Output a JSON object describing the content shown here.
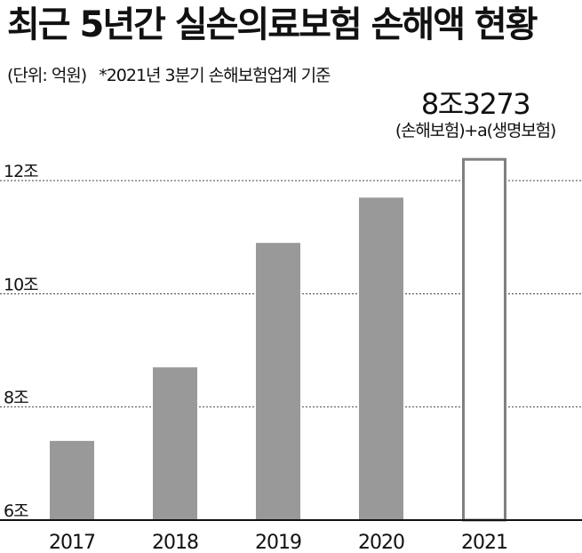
{
  "header": {
    "title": "최근 5년간 실손의료보험 손해액 현황",
    "unit": "(단위: 억원)",
    "note": "*2021년 3분기 손해보험업계 기준"
  },
  "annotation": {
    "value": "8조3273",
    "note": "(손해보험)+a(생명보험)"
  },
  "chart_data": {
    "type": "bar",
    "categories": [
      "2017",
      "2018",
      "2019",
      "2020",
      "2021"
    ],
    "values": [
      7.4,
      8.7,
      10.9,
      11.7,
      12.4
    ],
    "ylim": [
      6,
      12.6
    ],
    "yticks": [
      6,
      8,
      10,
      12
    ],
    "ytick_labels": [
      "6조",
      "8조",
      "10조",
      "12조"
    ],
    "bar_color": "#999999",
    "highlight_index": 4,
    "highlight_style": "outline",
    "grid": "dashed horizontal"
  }
}
